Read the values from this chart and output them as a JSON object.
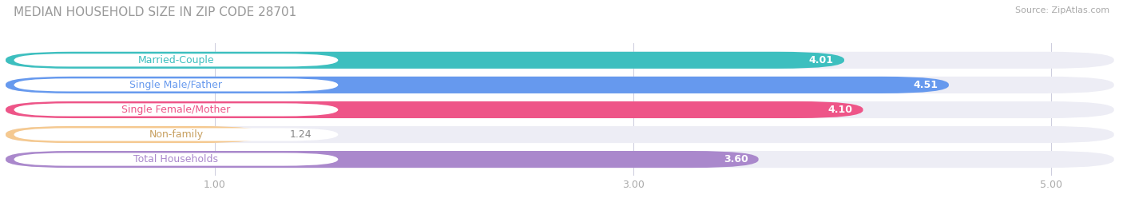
{
  "title": "MEDIAN HOUSEHOLD SIZE IN ZIP CODE 28701",
  "source": "Source: ZipAtlas.com",
  "categories": [
    "Married-Couple",
    "Single Male/Father",
    "Single Female/Mother",
    "Non-family",
    "Total Households"
  ],
  "values": [
    4.01,
    4.51,
    4.1,
    1.24,
    3.6
  ],
  "bar_colors": [
    "#3dbfbf",
    "#6699ee",
    "#ee5588",
    "#f5c990",
    "#aa88cc"
  ],
  "label_text_colors": [
    "#3dbfbf",
    "#6699ee",
    "#ee5588",
    "#c8a060",
    "#aa88cc"
  ],
  "background_color": "#ffffff",
  "bar_bg_color": "#ededf5",
  "xlim": [
    0,
    5.3
  ],
  "xmin": 0,
  "xticks": [
    1.0,
    3.0,
    5.0
  ],
  "label_fontsize": 9,
  "value_fontsize": 9,
  "title_fontsize": 11
}
